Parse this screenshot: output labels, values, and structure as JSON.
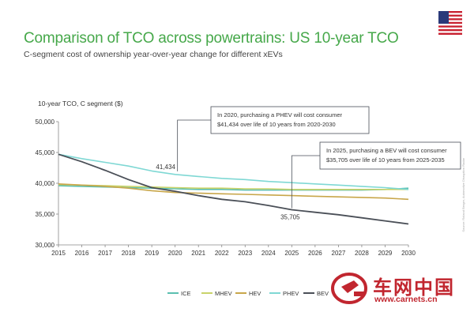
{
  "title": "Comparison of TCO across powertrains: US 10-year TCO",
  "subtitle": "C-segment cost of ownership year-over-year change for different xEVs",
  "flag_icon": "us-flag-icon",
  "watermark": {
    "brand": "车网中国",
    "url": "www.carnets.cn",
    "vertical_text": "Source: Roland Berger, Automotive Disruption Radar"
  },
  "colors": {
    "title": "#46a84a",
    "ICE": "#5bbfb0",
    "MHEV": "#c9d36a",
    "HEV": "#c8a64a",
    "PHEV": "#7fd8d4",
    "BEV": "#4a4f57",
    "brand": "#c1262f"
  },
  "chart_data": {
    "type": "line",
    "ylabel": "10-year TCO, C segment ($)",
    "xlabel": "",
    "x": [
      2015,
      2016,
      2017,
      2018,
      2019,
      2020,
      2021,
      2022,
      2023,
      2024,
      2025,
      2026,
      2027,
      2028,
      2029,
      2030
    ],
    "ylim": [
      30000,
      50000
    ],
    "yticks": [
      30000,
      35000,
      40000,
      45000,
      50000
    ],
    "ytick_labels": [
      "30,000",
      "35,000",
      "40,000",
      "45,000",
      "50,000"
    ],
    "grid": false,
    "legend_position": "bottom",
    "series": [
      {
        "name": "ICE",
        "values": [
          39600,
          39500,
          39400,
          39300,
          39200,
          39100,
          39000,
          39000,
          38900,
          38900,
          38900,
          38900,
          38900,
          38900,
          39000,
          39200
        ]
      },
      {
        "name": "MHEV",
        "values": [
          39800,
          39700,
          39600,
          39500,
          39400,
          39300,
          39200,
          39200,
          39100,
          39100,
          39000,
          39000,
          39000,
          39000,
          39000,
          39000
        ]
      },
      {
        "name": "HEV",
        "values": [
          39900,
          39700,
          39500,
          39200,
          38800,
          38500,
          38400,
          38300,
          38200,
          38100,
          38000,
          37900,
          37800,
          37700,
          37600,
          37400
        ]
      },
      {
        "name": "PHEV",
        "values": [
          44700,
          44000,
          43400,
          42800,
          42000,
          41434,
          41100,
          40800,
          40600,
          40300,
          40100,
          39900,
          39700,
          39500,
          39300,
          39000
        ]
      },
      {
        "name": "BEV",
        "values": [
          44700,
          43500,
          42100,
          40600,
          39300,
          38700,
          38000,
          37400,
          37000,
          36400,
          35705,
          35300,
          34900,
          34400,
          33900,
          33400
        ]
      }
    ],
    "point_labels": [
      {
        "series": "PHEV",
        "x": 2020,
        "text": "41,434"
      },
      {
        "series": "BEV",
        "x": 2025,
        "text": "35,705"
      }
    ],
    "annotations": [
      {
        "series": "PHEV",
        "x": 2020,
        "lines": [
          "In 2020, purchasing a PHEV will cost consumer",
          "$41,434 over life of 10 years from 2020-2030"
        ]
      },
      {
        "series": "BEV",
        "x": 2025,
        "lines": [
          "In 2025, purchasing a BEV will cost consumer",
          "$35,705 over life of 10 years from 2025-2035"
        ]
      }
    ]
  }
}
